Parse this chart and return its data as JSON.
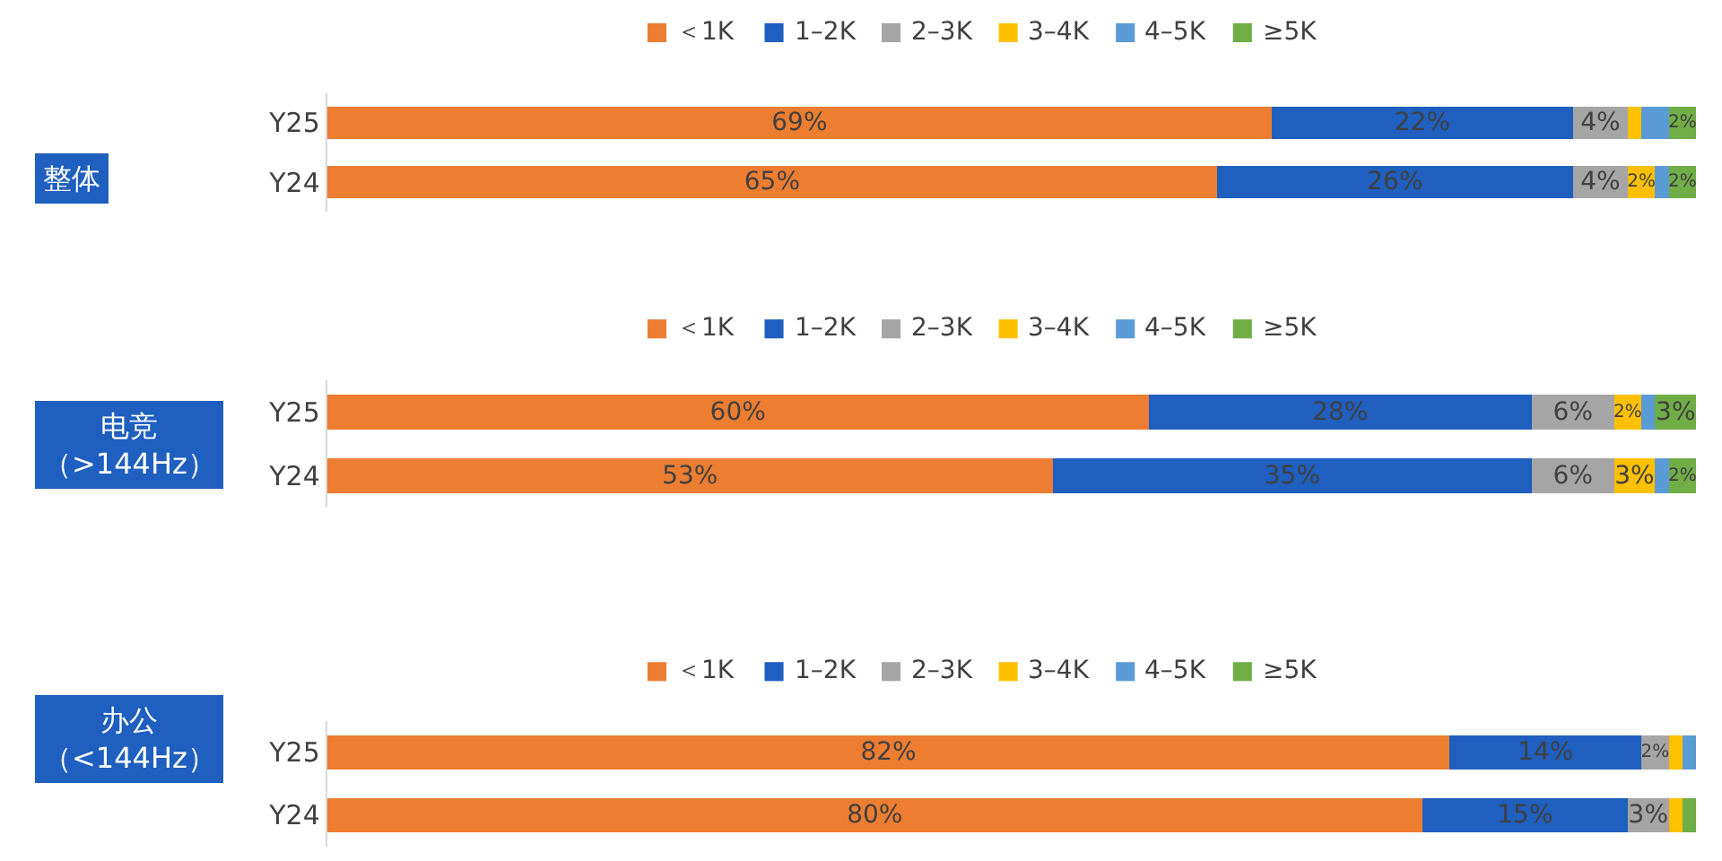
{
  "chart_data": [
    {
      "type": "bar",
      "orientation": "horizontal",
      "stacked": true,
      "title": "整体",
      "categories": [
        "Y25",
        "Y24"
      ],
      "xlim": [
        0,
        100
      ],
      "tick_labels": "y",
      "legend": "top",
      "series": [
        {
          "name": "＜1K",
          "color": "#ed7d31",
          "values": [
            69,
            65
          ],
          "value_labels": [
            "69%",
            "65%"
          ]
        },
        {
          "name": "1–2K",
          "color": "#1f5fbf",
          "values": [
            22,
            26
          ],
          "value_labels": [
            "22%",
            "26%"
          ]
        },
        {
          "name": "2–3K",
          "color": "#a5a5a5",
          "values": [
            4,
            4
          ],
          "value_labels": [
            "4%",
            "4%"
          ]
        },
        {
          "name": "3–4K",
          "color": "#ffc000",
          "values": [
            1,
            2
          ],
          "value_labels": [
            null,
            "2%"
          ]
        },
        {
          "name": "4–5K",
          "color": "#5b9bd5",
          "values": [
            2,
            1
          ],
          "value_labels": [
            null,
            null
          ]
        },
        {
          "name": "≥5K",
          "color": "#70ad47",
          "values": [
            2,
            2
          ],
          "value_labels": [
            "2%",
            "2%"
          ]
        }
      ]
    },
    {
      "type": "bar",
      "orientation": "horizontal",
      "stacked": true,
      "title": "电竞（>144Hz）",
      "categories": [
        "Y25",
        "Y24"
      ],
      "xlim": [
        0,
        100
      ],
      "tick_labels": "y",
      "legend": "top",
      "series": [
        {
          "name": "＜1K",
          "color": "#ed7d31",
          "values": [
            60,
            53
          ],
          "value_labels": [
            "60%",
            "53%"
          ]
        },
        {
          "name": "1–2K",
          "color": "#1f5fbf",
          "values": [
            28,
            35
          ],
          "value_labels": [
            "28%",
            "35%"
          ]
        },
        {
          "name": "2–3K",
          "color": "#a5a5a5",
          "values": [
            6,
            6
          ],
          "value_labels": [
            "6%",
            "6%"
          ]
        },
        {
          "name": "3–4K",
          "color": "#ffc000",
          "values": [
            2,
            3
          ],
          "value_labels": [
            "2%",
            "3%"
          ]
        },
        {
          "name": "4–5K",
          "color": "#5b9bd5",
          "values": [
            1,
            1
          ],
          "value_labels": [
            null,
            null
          ]
        },
        {
          "name": "≥5K",
          "color": "#70ad47",
          "values": [
            3,
            2
          ],
          "value_labels": [
            "3%",
            "2%"
          ]
        }
      ]
    },
    {
      "type": "bar",
      "orientation": "horizontal",
      "stacked": true,
      "title": "办公（<144Hz）",
      "categories": [
        "Y25",
        "Y24"
      ],
      "xlim": [
        0,
        100
      ],
      "tick_labels": "y",
      "legend": "top",
      "series": [
        {
          "name": "＜1K",
          "color": "#ed7d31",
          "values": [
            82,
            80
          ],
          "value_labels": [
            "82%",
            "80%"
          ]
        },
        {
          "name": "1–2K",
          "color": "#1f5fbf",
          "values": [
            14,
            15
          ],
          "value_labels": [
            "14%",
            "15%"
          ]
        },
        {
          "name": "2–3K",
          "color": "#a5a5a5",
          "values": [
            2,
            3
          ],
          "value_labels": [
            "2%",
            "3%"
          ]
        },
        {
          "name": "3–4K",
          "color": "#ffc000",
          "values": [
            1,
            1
          ],
          "value_labels": [
            null,
            null
          ]
        },
        {
          "name": "4–5K",
          "color": "#5b9bd5",
          "values": [
            1,
            0
          ],
          "value_labels": [
            null,
            null
          ]
        },
        {
          "name": "≥5K",
          "color": "#70ad47",
          "values": [
            0,
            1
          ],
          "value_labels": [
            null,
            null
          ]
        }
      ]
    }
  ]
}
